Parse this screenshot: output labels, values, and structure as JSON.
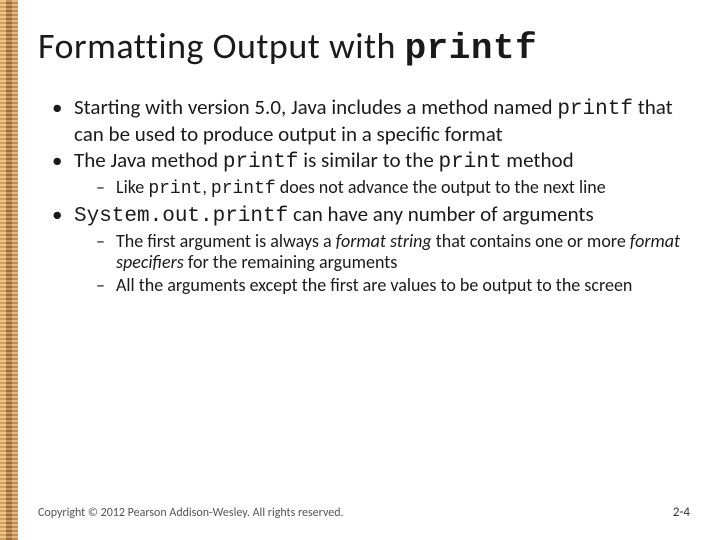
{
  "colors": {
    "background": "#ffffff",
    "text": "#1a1a1a",
    "footer_text": "#555555",
    "border_stripes": [
      "#d4a05a",
      "#9b6a3a",
      "#c78a4a"
    ]
  },
  "typography": {
    "title_fontsize": 36,
    "body_fontsize": 21,
    "sub_fontsize": 18,
    "footer_fontsize": 12,
    "mono_family": "Courier New"
  },
  "title": {
    "prefix": "Formatting Output with ",
    "code": "printf"
  },
  "bullets": [
    {
      "segments": [
        {
          "t": "Starting with version 5.0, Java includes a method named "
        },
        {
          "t": "printf",
          "mono": true
        },
        {
          "t": " that can be used to produce output in a specific format"
        }
      ]
    },
    {
      "segments": [
        {
          "t": "The Java method "
        },
        {
          "t": "printf",
          "mono": true
        },
        {
          "t": " is similar to the "
        },
        {
          "t": "print",
          "mono": true
        },
        {
          "t": " method"
        }
      ],
      "sub": [
        {
          "segments": [
            {
              "t": "Like "
            },
            {
              "t": "print",
              "mono": true
            },
            {
              "t": ", "
            },
            {
              "t": "printf",
              "mono": true
            },
            {
              "t": " does not advance the output to the next line"
            }
          ]
        }
      ]
    },
    {
      "segments": [
        {
          "t": "System.out.printf",
          "mono": true
        },
        {
          "t": " can have any number of arguments"
        }
      ],
      "sub": [
        {
          "segments": [
            {
              "t": "The first argument is always a "
            },
            {
              "t": "format string",
              "italic": true
            },
            {
              "t": " that contains one or more "
            },
            {
              "t": "format specifiers",
              "italic": true
            },
            {
              "t": " for the remaining arguments"
            }
          ]
        },
        {
          "segments": [
            {
              "t": "All the arguments except the first are values to be output to the screen"
            }
          ]
        }
      ]
    }
  ],
  "footer": "Copyright © 2012 Pearson Addison-Wesley. All rights reserved.",
  "page_number": "2-4"
}
